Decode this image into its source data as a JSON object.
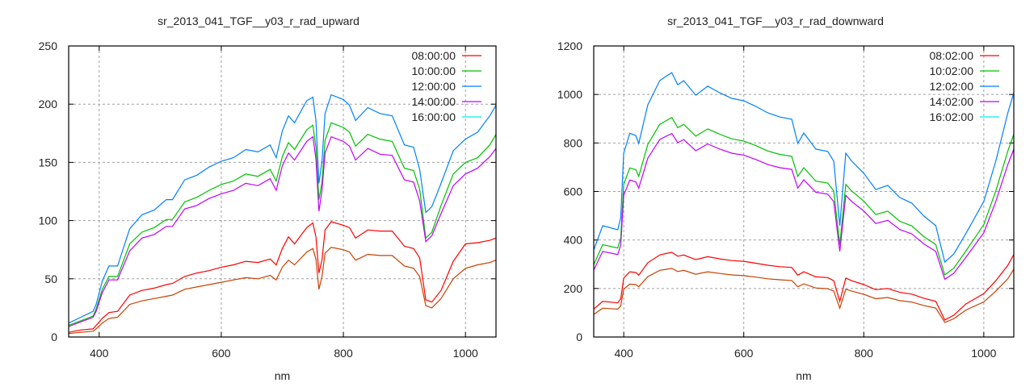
{
  "chart_data": [
    {
      "type": "line",
      "title": "sr_2013_041_TGF__y03_r_rad_upward",
      "xlabel": "nm",
      "ylabel": "",
      "xlim": [
        350,
        1050
      ],
      "ylim": [
        0,
        250
      ],
      "xticks": [
        400,
        600,
        800,
        1000
      ],
      "yticks": [
        0,
        50,
        100,
        150,
        200,
        250
      ],
      "grid": true,
      "legend_position": "top-right",
      "x": [
        350,
        370,
        390,
        395,
        405,
        416,
        430,
        450,
        470,
        490,
        510,
        520,
        540,
        560,
        580,
        600,
        620,
        640,
        660,
        680,
        690,
        700,
        710,
        720,
        740,
        750,
        755,
        760,
        765,
        770,
        780,
        800,
        810,
        820,
        840,
        860,
        880,
        900,
        915,
        925,
        935,
        945,
        960,
        980,
        1000,
        1020,
        1040,
        1050
      ],
      "series": [
        {
          "name": "08:00:00",
          "color": "#ff0000",
          "legend_color": "#ff0000",
          "values": [
            4,
            6,
            7,
            10,
            16,
            21,
            22,
            36,
            40,
            42,
            45,
            46,
            52,
            55,
            57,
            60,
            62,
            65,
            64,
            67,
            62,
            76,
            86,
            80,
            94,
            98,
            86,
            55,
            66,
            92,
            99,
            96,
            94,
            85,
            92,
            91,
            91,
            78,
            76,
            68,
            32,
            30,
            40,
            65,
            80,
            81,
            83,
            85
          ]
        },
        {
          "name": "10:00:00",
          "color": "#00c000",
          "legend_color": "#00c000",
          "values": [
            10,
            14,
            18,
            24,
            41,
            52,
            52,
            80,
            90,
            94,
            101,
            101,
            116,
            120,
            126,
            131,
            134,
            140,
            138,
            144,
            134,
            155,
            167,
            161,
            178,
            182,
            163,
            118,
            133,
            169,
            184,
            180,
            176,
            164,
            174,
            170,
            168,
            145,
            143,
            127,
            85,
            90,
            113,
            140,
            150,
            154,
            165,
            174
          ]
        },
        {
          "name": "12:00:00",
          "color": "#0080ff",
          "legend_color": "#0080ff",
          "values": [
            12,
            17,
            22,
            28,
            48,
            61,
            61,
            93,
            105,
            109,
            118,
            118,
            135,
            139,
            146,
            151,
            154,
            161,
            159,
            165,
            154,
            177,
            190,
            184,
            203,
            206,
            186,
            132,
            151,
            192,
            208,
            204,
            199,
            186,
            197,
            192,
            190,
            165,
            163,
            144,
            107,
            112,
            132,
            160,
            170,
            176,
            190,
            199
          ]
        },
        {
          "name": "14:00:00",
          "color": "#c000ff",
          "legend_color": "#c000ff",
          "values": [
            9,
            13,
            17,
            22,
            38,
            49,
            49,
            74,
            85,
            88,
            95,
            95,
            110,
            113,
            119,
            123,
            126,
            132,
            130,
            136,
            126,
            147,
            158,
            152,
            168,
            172,
            153,
            108,
            126,
            158,
            172,
            168,
            164,
            152,
            162,
            157,
            156,
            135,
            133,
            117,
            82,
            87,
            106,
            130,
            140,
            145,
            155,
            162
          ]
        },
        {
          "name": "16:00:00",
          "color": "#c84000",
          "legend_color": "#00eeee",
          "values": [
            3,
            4,
            5,
            7,
            12,
            16,
            17,
            28,
            31,
            33,
            35,
            36,
            41,
            43,
            45,
            47,
            49,
            51,
            50,
            53,
            49,
            60,
            66,
            62,
            73,
            76,
            67,
            41,
            52,
            72,
            77,
            75,
            73,
            66,
            71,
            70,
            70,
            61,
            59,
            52,
            27,
            25,
            33,
            50,
            59,
            62,
            64,
            66
          ]
        }
      ]
    },
    {
      "type": "line",
      "title": "sr_2013_041_TGF__y03_r_rad_downward",
      "xlabel": "nm",
      "ylabel": "",
      "xlim": [
        350,
        1050
      ],
      "ylim": [
        0,
        1200
      ],
      "xticks": [
        400,
        600,
        800,
        1000
      ],
      "yticks": [
        0,
        200,
        400,
        600,
        800,
        1000,
        1200
      ],
      "grid": true,
      "legend_position": "top-right",
      "x": [
        350,
        365,
        390,
        395,
        400,
        410,
        420,
        425,
        440,
        460,
        470,
        480,
        490,
        500,
        520,
        540,
        560,
        580,
        600,
        620,
        640,
        660,
        680,
        690,
        700,
        720,
        740,
        750,
        760,
        770,
        780,
        800,
        820,
        840,
        860,
        880,
        900,
        920,
        935,
        950,
        970,
        1000,
        1020,
        1040,
        1050
      ],
      "series": [
        {
          "name": "08:02:00",
          "color": "#ff0000",
          "legend_color": "#ff0000",
          "values": [
            115,
            147,
            141,
            157,
            243,
            269,
            266,
            255,
            306,
            338,
            344,
            349,
            333,
            338,
            319,
            331,
            322,
            315,
            312,
            304,
            296,
            290,
            287,
            255,
            269,
            248,
            245,
            232,
            147,
            243,
            232,
            216,
            195,
            200,
            184,
            177,
            160,
            147,
            70,
            90,
            136,
            179,
            232,
            296,
            340
          ]
        },
        {
          "name": "10:02:00",
          "color": "#00c000",
          "legend_color": "#00c000",
          "values": [
            298,
            381,
            367,
            408,
            629,
            697,
            690,
            662,
            794,
            877,
            891,
            905,
            863,
            877,
            828,
            858,
            836,
            817,
            808,
            789,
            767,
            753,
            745,
            662,
            698,
            643,
            635,
            602,
            381,
            629,
            602,
            560,
            505,
            519,
            477,
            458,
            414,
            381,
            256,
            284,
            354,
            464,
            602,
            767,
            836
          ]
        },
        {
          "name": "12:02:00",
          "color": "#0080ff",
          "legend_color": "#0080ff",
          "values": [
            359,
            459,
            442,
            492,
            758,
            840,
            831,
            798,
            957,
            1057,
            1074,
            1090,
            1040,
            1057,
            997,
            1034,
            1007,
            984,
            974,
            951,
            924,
            907,
            898,
            798,
            841,
            775,
            765,
            725,
            459,
            758,
            725,
            675,
            608,
            625,
            575,
            552,
            499,
            459,
            309,
            342,
            426,
            559,
            725,
            924,
            1007
          ]
        },
        {
          "name": "14:02:00",
          "color": "#c000ff",
          "legend_color": "#c000ff",
          "values": [
            276,
            353,
            340,
            379,
            584,
            647,
            640,
            614,
            737,
            814,
            827,
            839,
            801,
            814,
            768,
            796,
            775,
            758,
            750,
            732,
            711,
            698,
            691,
            614,
            648,
            597,
            589,
            558,
            353,
            584,
            558,
            520,
            468,
            481,
            443,
            425,
            384,
            353,
            238,
            263,
            328,
            430,
            558,
            711,
            775
          ]
        },
        {
          "name": "16:02:00",
          "color": "#c84000",
          "legend_color": "#00eeee",
          "values": [
            93,
            119,
            115,
            128,
            197,
            218,
            216,
            207,
            249,
            275,
            279,
            283,
            270,
            275,
            259,
            269,
            262,
            256,
            253,
            247,
            240,
            236,
            233,
            207,
            219,
            202,
            199,
            189,
            119,
            197,
            189,
            176,
            158,
            163,
            150,
            144,
            130,
            119,
            60,
            75,
            111,
            145,
            189,
            240,
            280
          ]
        }
      ]
    }
  ]
}
